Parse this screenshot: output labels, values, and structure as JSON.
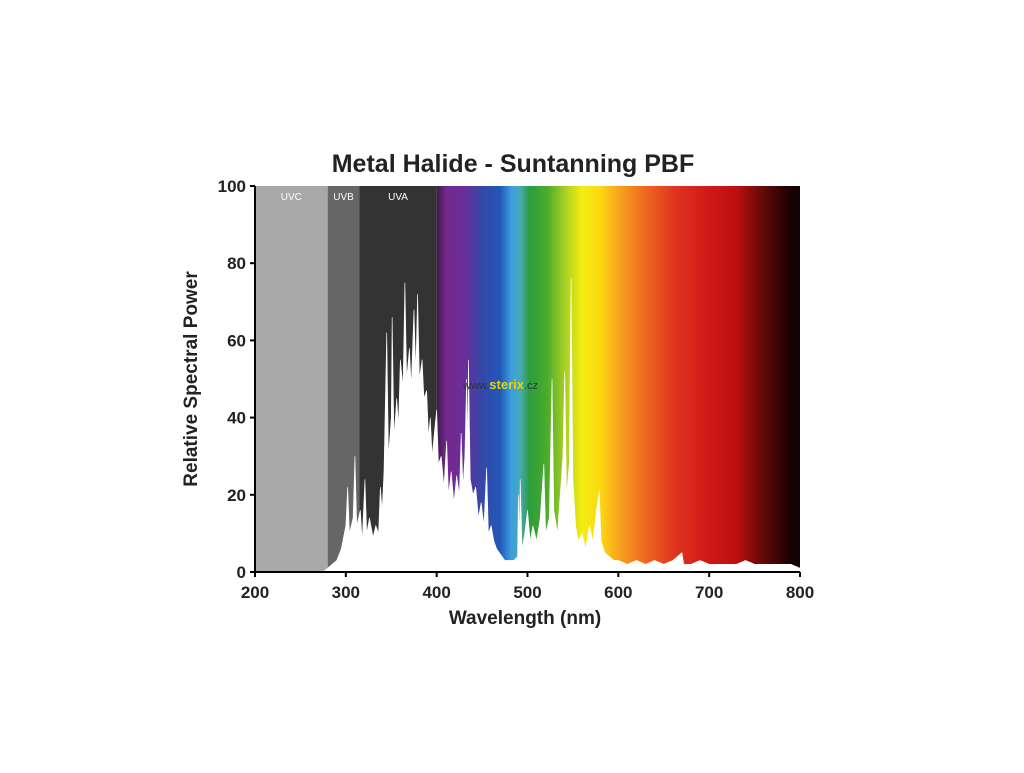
{
  "chart_data": {
    "type": "area",
    "title": "Metal Halide - Suntanning PBF",
    "x_label": "Wavelength (nm)",
    "y_label": "Relative Spectral Power",
    "xlim": [
      200,
      800
    ],
    "ylim": [
      0,
      100
    ],
    "xticks": [
      200,
      300,
      400,
      500,
      600,
      700,
      800
    ],
    "yticks": [
      0,
      20,
      40,
      60,
      80,
      100
    ],
    "grid": false,
    "color": "#ffffff",
    "bands": [
      {
        "label": "UVC",
        "range": [
          200,
          280
        ],
        "color": "#a8a8a8"
      },
      {
        "label": "UVB",
        "range": [
          280,
          315
        ],
        "color": "#666666"
      },
      {
        "label": "UVA",
        "range": [
          315,
          400
        ],
        "color": "#333333"
      }
    ],
    "spectrum": {
      "range": [
        400,
        800
      ],
      "stops": [
        {
          "wavelength": 400,
          "color": "#3a1a48"
        },
        {
          "wavelength": 410,
          "color": "#74288c"
        },
        {
          "wavelength": 430,
          "color": "#6a2e98"
        },
        {
          "wavelength": 450,
          "color": "#3448a8"
        },
        {
          "wavelength": 470,
          "color": "#2258b8"
        },
        {
          "wavelength": 482,
          "color": "#3c9ede"
        },
        {
          "wavelength": 492,
          "color": "#46aab8"
        },
        {
          "wavelength": 502,
          "color": "#2c9c3c"
        },
        {
          "wavelength": 522,
          "color": "#4cac2c"
        },
        {
          "wavelength": 542,
          "color": "#acd024"
        },
        {
          "wavelength": 560,
          "color": "#f2ee10"
        },
        {
          "wavelength": 580,
          "color": "#fcd810"
        },
        {
          "wavelength": 602,
          "color": "#f6a020"
        },
        {
          "wavelength": 632,
          "color": "#ee6420"
        },
        {
          "wavelength": 662,
          "color": "#e03420"
        },
        {
          "wavelength": 700,
          "color": "#d01818"
        },
        {
          "wavelength": 730,
          "color": "#bc1010"
        },
        {
          "wavelength": 762,
          "color": "#5c0808"
        },
        {
          "wavelength": 792,
          "color": "#140202"
        }
      ]
    },
    "watermark": {
      "parts": [
        "www.",
        "sterix",
        ".cz"
      ],
      "colors": [
        "#333333",
        "#e6d400",
        "#333333"
      ]
    },
    "x": [
      275,
      280,
      285,
      290,
      295,
      300,
      302,
      304,
      308,
      310,
      312,
      316,
      318,
      321,
      323,
      326,
      330,
      333,
      336,
      338,
      340,
      342,
      345,
      347,
      350,
      351,
      353,
      356,
      358,
      360,
      363,
      365,
      367,
      370,
      372,
      375,
      377,
      379,
      381,
      384,
      386,
      389,
      391,
      393,
      395,
      397,
      400,
      402,
      405,
      408,
      411,
      413,
      416,
      419,
      422,
      425,
      427,
      429,
      431,
      433,
      434,
      435,
      437,
      440,
      443,
      446,
      449,
      452,
      455,
      457,
      460,
      463,
      466,
      469,
      472,
      475,
      480,
      485,
      489,
      490,
      491,
      492,
      494,
      497,
      500,
      503,
      506,
      510,
      514,
      518,
      520,
      524,
      527,
      529,
      533,
      536,
      539,
      541,
      543,
      546,
      548,
      550,
      553,
      556,
      560,
      564,
      568,
      572,
      576,
      579,
      581,
      585,
      590,
      595,
      600,
      610,
      620,
      630,
      640,
      650,
      660,
      670,
      672,
      680,
      690,
      700,
      710,
      720,
      730,
      740,
      750,
      760,
      770,
      780,
      790,
      800
    ],
    "values": [
      0,
      1,
      2,
      3,
      6,
      12,
      22,
      10,
      14,
      30,
      12,
      16,
      8,
      24,
      10,
      14,
      9,
      12,
      10,
      22,
      16,
      26,
      62,
      30,
      40,
      66,
      35,
      45,
      38,
      55,
      48,
      75,
      50,
      58,
      48,
      68,
      52,
      72,
      50,
      55,
      45,
      47,
      35,
      40,
      30,
      35,
      42,
      28,
      30,
      22,
      34,
      20,
      26,
      18,
      25,
      20,
      36,
      22,
      30,
      50,
      30,
      55,
      24,
      20,
      22,
      14,
      18,
      12,
      27,
      10,
      12,
      8,
      6,
      5,
      4,
      3,
      3,
      3,
      4,
      20,
      8,
      24,
      6,
      10,
      16,
      8,
      12,
      8,
      14,
      28,
      10,
      14,
      50,
      16,
      10,
      20,
      30,
      52,
      20,
      28,
      76,
      24,
      12,
      8,
      10,
      6,
      12,
      8,
      16,
      21,
      8,
      5,
      4,
      3,
      3,
      2,
      3,
      2,
      3,
      2,
      3,
      5,
      2,
      2,
      3,
      2,
      2,
      2,
      2,
      3,
      2,
      2,
      2,
      2,
      2,
      1
    ]
  }
}
